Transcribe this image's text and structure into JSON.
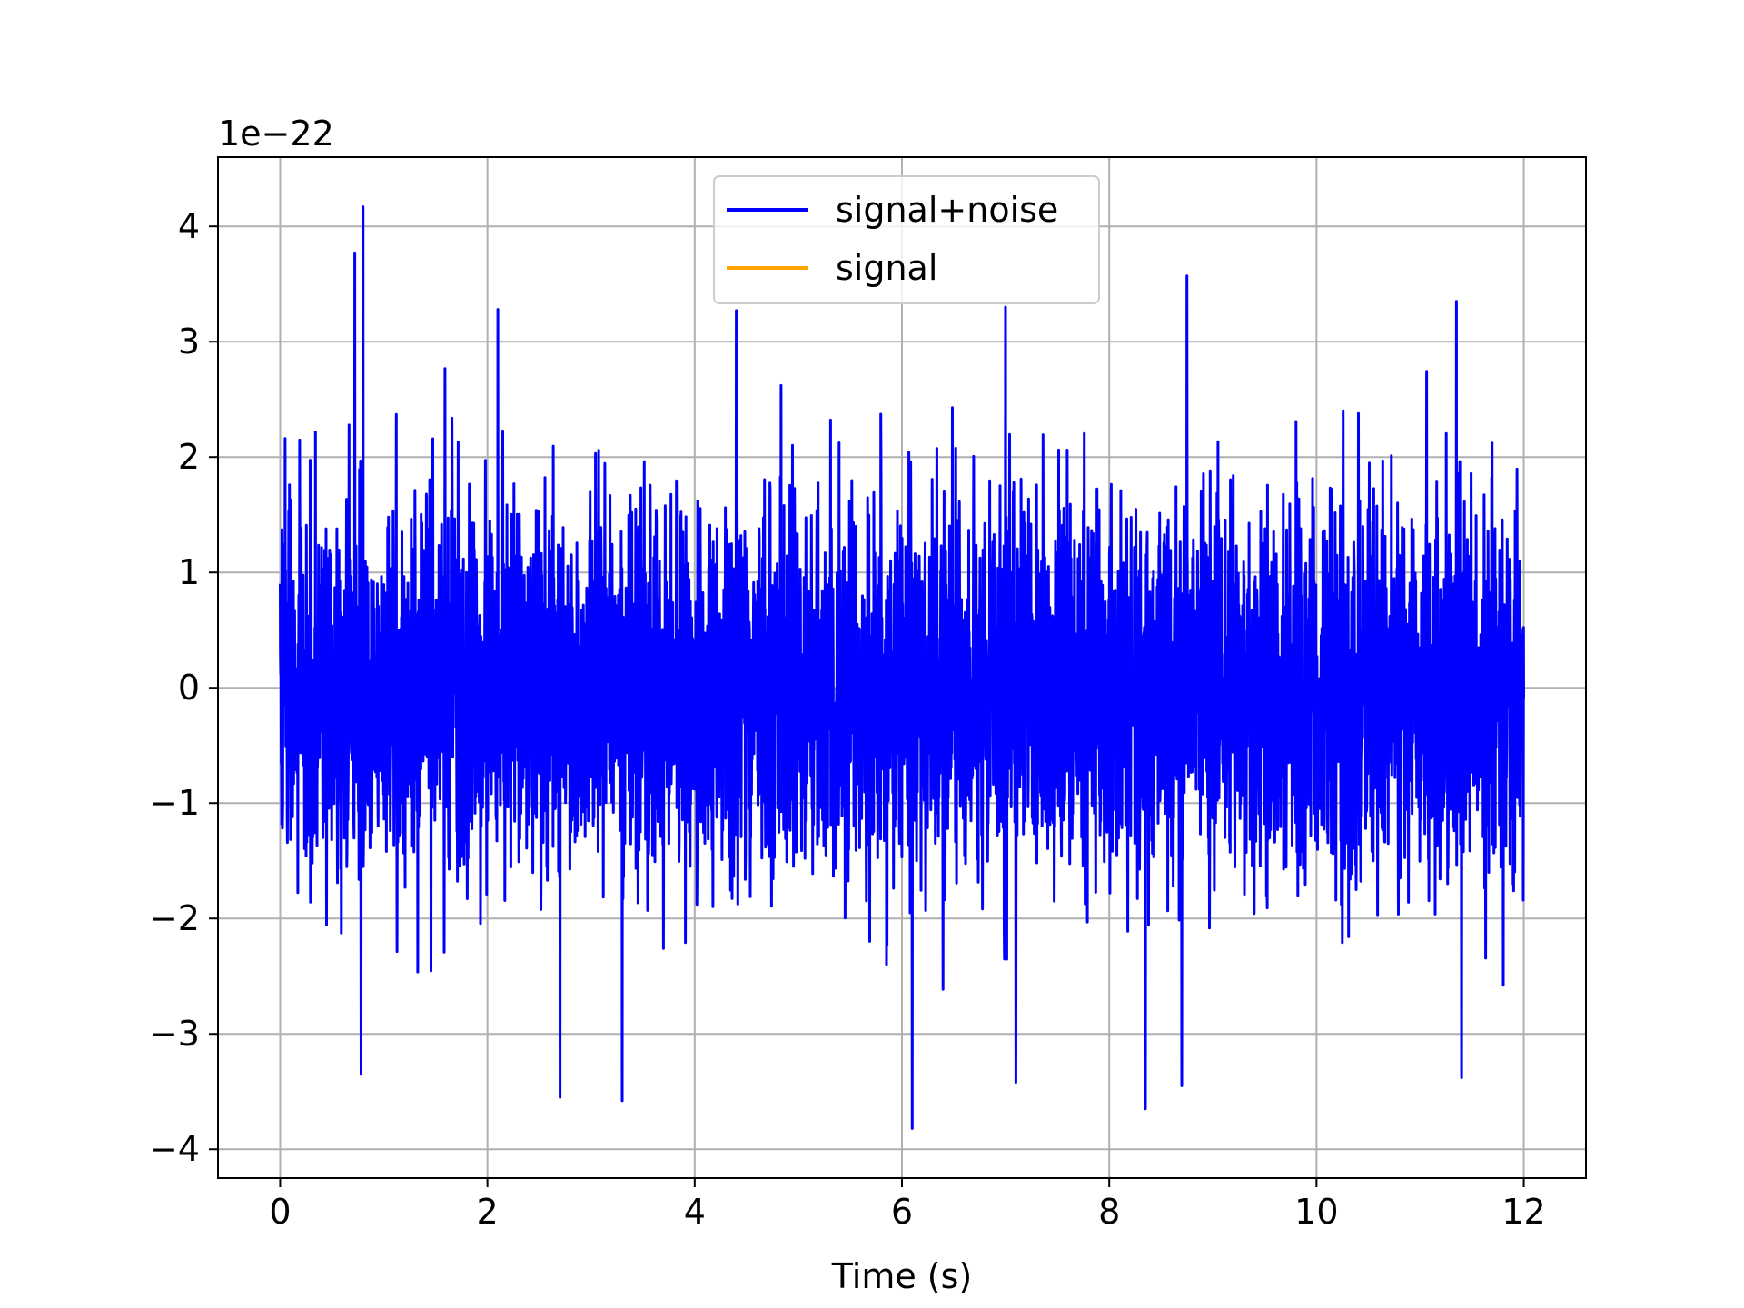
{
  "chart_data": {
    "type": "line",
    "title": "",
    "xlabel": "Time (s)",
    "ylabel": "",
    "y_scale_factor_label": "1e−22",
    "xlim": [
      -0.6,
      12.6
    ],
    "ylim": [
      -4.25,
      4.6
    ],
    "x_ticks": [
      0,
      2,
      4,
      6,
      8,
      10,
      12
    ],
    "x_tick_labels": [
      "0",
      "2",
      "4",
      "6",
      "8",
      "10",
      "12"
    ],
    "y_ticks": [
      -4,
      -3,
      -2,
      -1,
      0,
      1,
      2,
      3,
      4
    ],
    "y_tick_labels": [
      "−4",
      "−3",
      "−2",
      "−1",
      "0",
      "1",
      "2",
      "3",
      "4"
    ],
    "grid": true,
    "legend_position": "top-center",
    "series": [
      {
        "name": "signal+noise",
        "color": "#0000ff",
        "x_range": [
          0,
          12
        ],
        "amplitude_std": 0.8,
        "max_approx": 4.17,
        "min_approx": -3.82,
        "peaks": [
          {
            "x": 0.72,
            "y": 3.77
          },
          {
            "x": 0.8,
            "y": 4.17
          },
          {
            "x": 0.78,
            "y": -3.35
          },
          {
            "x": 2.1,
            "y": 3.28
          },
          {
            "x": 2.7,
            "y": -3.55
          },
          {
            "x": 3.3,
            "y": -3.58
          },
          {
            "x": 4.4,
            "y": 3.27
          },
          {
            "x": 6.1,
            "y": -3.82
          },
          {
            "x": 7.0,
            "y": 3.3
          },
          {
            "x": 7.1,
            "y": -3.42
          },
          {
            "x": 8.35,
            "y": -3.65
          },
          {
            "x": 8.75,
            "y": 3.57
          },
          {
            "x": 8.7,
            "y": -3.45
          },
          {
            "x": 11.35,
            "y": 3.35
          },
          {
            "x": 11.4,
            "y": -3.38
          }
        ]
      },
      {
        "name": "signal",
        "color": "#ffa500",
        "values_note": ""
      }
    ]
  }
}
